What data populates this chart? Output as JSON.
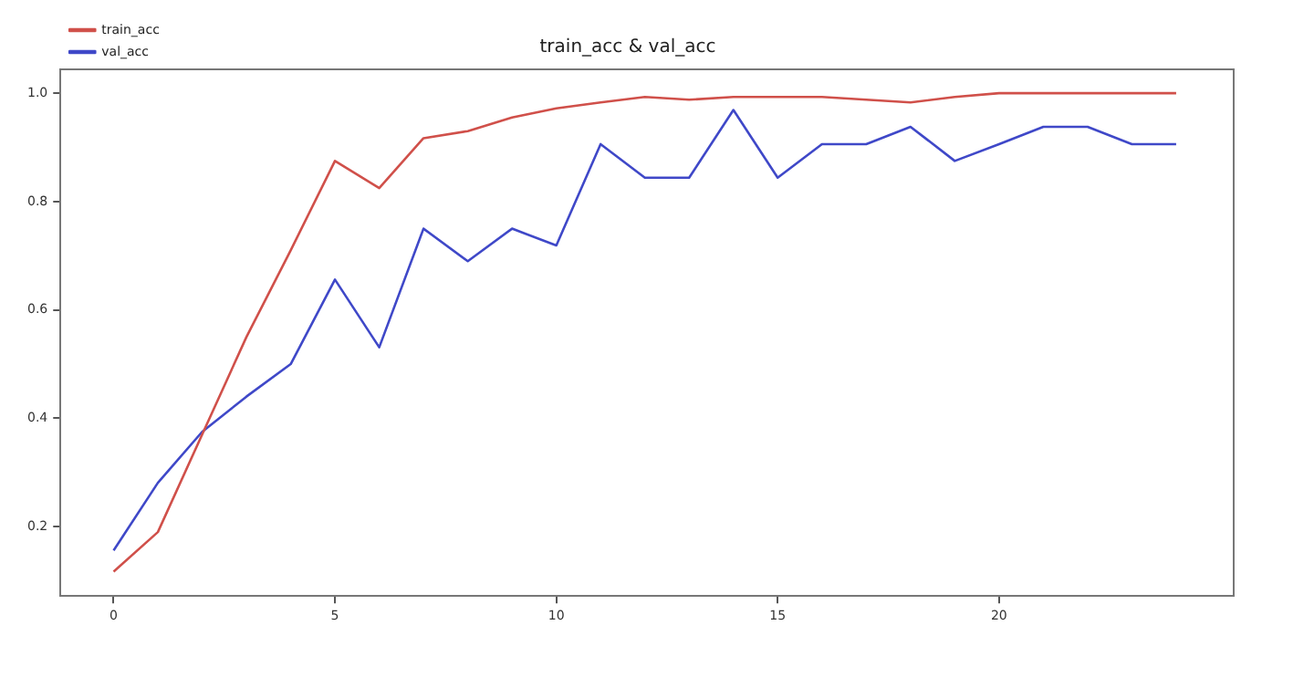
{
  "chart_data": {
    "type": "line",
    "title": "train_acc & val_acc",
    "x": [
      0,
      1,
      2,
      3,
      4,
      5,
      6,
      7,
      8,
      9,
      10,
      11,
      12,
      13,
      14,
      15,
      16,
      17,
      18,
      19,
      20,
      21,
      22,
      23,
      24
    ],
    "series": [
      {
        "name": "train_acc",
        "color": "#d0504a",
        "values": [
          0.117,
          0.19,
          0.37,
          0.55,
          0.71,
          0.875,
          0.825,
          0.917,
          0.93,
          0.955,
          0.972,
          0.983,
          0.993,
          0.988,
          0.993,
          0.993,
          0.993,
          0.988,
          0.983,
          0.993,
          1.0,
          1.0,
          1.0,
          1.0,
          1.0
        ]
      },
      {
        "name": "val_acc",
        "color": "#3f48c8",
        "values": [
          0.156,
          0.281,
          0.375,
          0.44,
          0.5,
          0.656,
          0.531,
          0.75,
          0.69,
          0.75,
          0.719,
          0.906,
          0.844,
          0.844,
          0.969,
          0.844,
          0.906,
          0.906,
          0.938,
          0.875,
          0.906,
          0.938,
          0.938,
          0.906,
          0.906
        ]
      }
    ],
    "xlim": [
      -1.2,
      25.3
    ],
    "xticks": [
      0,
      5,
      10,
      15,
      20
    ],
    "ylim": [
      0.072,
      1.044
    ],
    "yticks": [
      {
        "value": 0.2,
        "label": "0.2"
      },
      {
        "value": 0.4,
        "label": "0.4"
      },
      {
        "value": 0.6,
        "label": "0.6"
      },
      {
        "value": 0.8,
        "label": "0.8"
      },
      {
        "value": 1.0,
        "label": "1.0"
      }
    ],
    "grid": false,
    "legend": "top left",
    "marker": "none",
    "line_style": "solid"
  }
}
